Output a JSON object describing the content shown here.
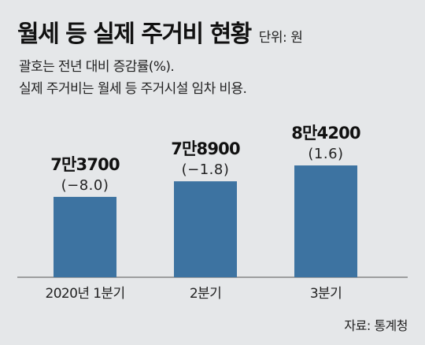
{
  "header": {
    "title": "월세 등 실제 주거비 현황",
    "unit": "단위: 원",
    "note_line1": "괄호는 전년 대비 증감률(%).",
    "note_line2": "실제 주거비는 월세 등 주거시설 임차 비용."
  },
  "source": "자료: 통계청",
  "colors": {
    "bar": "#3d73a1",
    "background": "#e5e7e9",
    "text": "#1a1a1a"
  },
  "chart_data": {
    "type": "bar",
    "title": "월세 등 실제 주거비 현황",
    "categories": [
      "2020년 1분기",
      "2분기",
      "3분기"
    ],
    "values": [
      73700,
      78900,
      84200
    ],
    "value_labels": [
      "7만3700",
      "7만8900",
      "8만4200"
    ],
    "change_labels": [
      "(−8.0)",
      "(−1.8)",
      "(1.6)"
    ],
    "change_pct": [
      -8.0,
      -1.8,
      1.6
    ],
    "ylim": [
      50000,
      90000
    ],
    "grid": false,
    "legend": "none"
  }
}
